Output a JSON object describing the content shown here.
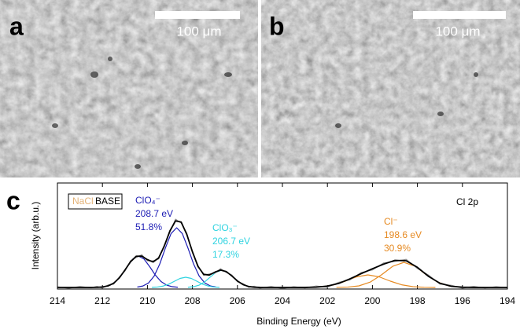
{
  "panels": [
    {
      "label": "a",
      "scale_bar": "100 μm"
    },
    {
      "label": "b",
      "scale_bar": "100 μm"
    }
  ],
  "chart_label": "c",
  "chart_data": {
    "type": "line",
    "xlabel": "Binding Energy (eV)",
    "ylabel": "Intensity (arb.u.)",
    "label": "Cl 2p",
    "legend": {
      "entries": [
        "NaCl",
        "BASE"
      ],
      "colors": [
        "#e3b277",
        "#000000"
      ]
    },
    "xlim": [
      214,
      194
    ],
    "xticks": [
      214,
      212,
      210,
      208,
      206,
      204,
      202,
      200,
      198,
      196,
      194
    ],
    "ylim": [
      -2,
      133
    ],
    "annotations": [
      {
        "lines": [
          "ClO₄⁻",
          "208.7 eV",
          "51.8%"
        ],
        "color": "#1c1cb4"
      },
      {
        "lines": [
          "ClO₃⁻",
          "206.7 eV",
          "17.3%"
        ],
        "color": "#2fd3e0"
      },
      {
        "lines": [
          "Cl⁻",
          "198.6 eV",
          "30.9%"
        ],
        "color": "#e68a22"
      }
    ],
    "series": [
      {
        "color": "#1c1cb4",
        "x": [
          212.15,
          211.9,
          211.65,
          211.4,
          211.15,
          210.9,
          210.65,
          210.4,
          210.15,
          209.9,
          209.65,
          209.4,
          209.15,
          208.9,
          208.65
        ],
        "values": [
          0.25,
          0.97,
          3.0,
          7.6,
          15.8,
          26.5,
          36.1,
          40,
          36.1,
          26.5,
          15.8,
          7.6,
          3.0,
          0.97,
          0.25
        ]
      },
      {
        "color": "#1c1cb4",
        "x": [
          210.45,
          210.2,
          209.95,
          209.7,
          209.45,
          209.2,
          208.95,
          208.7,
          208.45,
          208.2,
          207.95,
          207.7,
          207.45,
          207.2,
          206.95
        ],
        "values": [
          0.48,
          1.85,
          5.7,
          14.5,
          30.0,
          50.3,
          68.6,
          76,
          68.6,
          50.3,
          30.0,
          14.5,
          5.7,
          1.85,
          0.48
        ]
      },
      {
        "color": "#2fd3e0",
        "x": [
          209.8,
          209.55,
          209.3,
          209.05,
          208.8,
          208.55,
          208.3,
          208.05,
          207.8,
          207.55,
          207.3,
          207.05,
          206.8
        ],
        "values": [
          0.14,
          0.57,
          1.76,
          4.2,
          7.9,
          11.5,
          13,
          11.5,
          7.9,
          4.2,
          1.76,
          0.57,
          0.14
        ]
      },
      {
        "color": "#2fd3e0",
        "x": [
          208.2,
          207.95,
          207.7,
          207.45,
          207.2,
          206.95,
          206.7,
          206.45,
          206.2,
          205.95,
          205.7,
          205.45,
          205.2
        ],
        "values": [
          0.24,
          0.97,
          2.97,
          7.2,
          13.4,
          19.4,
          22,
          19.4,
          13.4,
          7.2,
          2.97,
          0.97,
          0.24
        ]
      },
      {
        "color": "#e68a22",
        "x": [
          203.2,
          202.7,
          202.2,
          201.7,
          201.2,
          200.7,
          200.2,
          199.7,
          199.2,
          198.7,
          198.2,
          197.7,
          197.2
        ],
        "values": [
          0.03,
          0.21,
          1.0,
          3.4,
          8.0,
          13.5,
          16,
          13.5,
          8.0,
          3.4,
          1.0,
          0.21,
          0.03
        ]
      },
      {
        "color": "#e68a22",
        "x": [
          201.6,
          201.1,
          200.6,
          200.1,
          199.6,
          199.1,
          198.6,
          198.1,
          197.6,
          197.1,
          196.6,
          196.1,
          195.6
        ],
        "values": [
          0.06,
          0.42,
          2.0,
          6.8,
          16.0,
          26.9,
          32,
          26.9,
          16.0,
          6.8,
          2.0,
          0.42,
          0.06
        ]
      },
      {
        "color": "#8c8c8c",
        "x": [
          214,
          213.5,
          213,
          212.5,
          212.25,
          212,
          211.75,
          211.5,
          211.25,
          211,
          210.75,
          210.5,
          210.25,
          210,
          209.75,
          209.5,
          209.25,
          209,
          208.75,
          208.5,
          208.25,
          208,
          207.75,
          207.5,
          207.25,
          207,
          206.75,
          206.5,
          206.25,
          206,
          205.75,
          205.5,
          205.25,
          205,
          204.5,
          204,
          203.5,
          203,
          202.5,
          202,
          201.5,
          201,
          200.5,
          200,
          199.5,
          199,
          198.5,
          198,
          197.5,
          197,
          196.5,
          196,
          195.5,
          195,
          194.5,
          194
        ],
        "values": [
          0.8,
          -1.0,
          1.2,
          -0.5,
          1.4,
          -0.9,
          3.1,
          4.2,
          13.5,
          20.8,
          34.1,
          38.2,
          41.6,
          34.0,
          33.9,
          36.3,
          54.1,
          70.6,
          86.9,
          82.0,
          69.1,
          44.2,
          27.9,
          15.4,
          17.2,
          18.3,
          23.9,
          19.1,
          16.0,
          7.2,
          4.9,
          0.2,
          1.5,
          -0.8,
          1.1,
          -1.3,
          0.9,
          -0.6,
          1.8,
          0.4,
          6.5,
          9.6,
          19.0,
          22.3,
          31.2,
          33.1,
          35.8,
          24.1,
          15.6,
          4.2,
          2.8,
          -0.9,
          1.3,
          -0.7,
          0.9,
          -0.4
        ]
      },
      {
        "color": "#000000",
        "x": [
          214,
          213.5,
          213,
          212.5,
          212.25,
          212,
          211.75,
          211.5,
          211.25,
          211,
          210.75,
          210.5,
          210.25,
          210,
          209.75,
          209.5,
          209.25,
          209,
          208.75,
          208.5,
          208.25,
          208,
          207.75,
          207.5,
          207.25,
          207,
          206.75,
          206.5,
          206.25,
          206,
          205.75,
          205.5,
          205.25,
          205,
          204.5,
          204,
          203.5,
          203,
          202.5,
          202,
          201.5,
          201,
          200.5,
          200,
          199.5,
          199,
          198.5,
          198,
          197.5,
          197,
          196.5,
          196,
          195.5,
          195,
          194.5,
          194
        ],
        "values": [
          0,
          0,
          0,
          0.03,
          0.14,
          0.58,
          1.97,
          5.4,
          12.1,
          22.1,
          32.7,
          39.7,
          39.9,
          35.4,
          32.4,
          37.6,
          52.7,
          72.0,
          84.8,
          83.2,
          67.5,
          45.5,
          26.6,
          16.7,
          15.8,
          19.5,
          22.1,
          20.3,
          14.7,
          8.3,
          3.6,
          1.2,
          0.33,
          0.07,
          0,
          0,
          0.01,
          0.07,
          0.41,
          1.7,
          5.1,
          10.9,
          17.6,
          23.8,
          29.7,
          34.5,
          34.0,
          25.6,
          14.0,
          5.4,
          1.5,
          0.3,
          0.04,
          0,
          0,
          0
        ]
      }
    ]
  }
}
